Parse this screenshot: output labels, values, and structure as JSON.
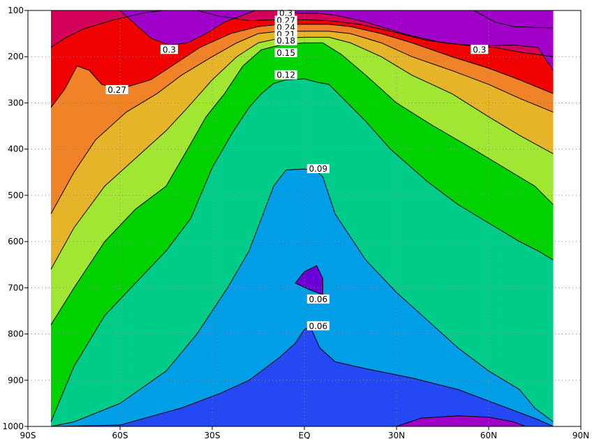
{
  "chart_data": {
    "type": "filled-contour",
    "title": "",
    "xlabel": "",
    "ylabel": "",
    "x_ticks": [
      "90S",
      "60S",
      "30S",
      "EQ",
      "30N",
      "60N",
      "90N"
    ],
    "x_tick_values": [
      -90,
      -60,
      -30,
      0,
      30,
      60,
      90
    ],
    "y_ticks": [
      "100",
      "200",
      "300",
      "400",
      "500",
      "600",
      "700",
      "800",
      "900",
      "1000"
    ],
    "y_tick_values": [
      100,
      200,
      300,
      400,
      500,
      600,
      700,
      800,
      900,
      1000
    ],
    "xlim": [
      -90,
      90
    ],
    "ylim": [
      1000,
      100
    ],
    "y_inverted": true,
    "data_lat_range": [
      -82.5,
      81
    ],
    "grid": "dotted",
    "contour_levels": [
      0.03,
      0.06,
      0.09,
      0.12,
      0.15,
      0.18,
      0.21,
      0.24,
      0.27,
      0.3
    ],
    "band_colors": [
      "#6a00d5",
      "#2448f4",
      "#009ee6",
      "#00cc8a",
      "#00d200",
      "#a0e632",
      "#e6b428",
      "#f08228",
      "#f00000",
      "#d2005a",
      "#a000c8"
    ],
    "contour_labels": [
      {
        "text": "0.3",
        "x": -44,
        "y": 185
      },
      {
        "text": "0.27",
        "x": -61,
        "y": 272
      },
      {
        "text": "0.3",
        "x": 57,
        "y": 185
      },
      {
        "text": "0.3",
        "x": -6,
        "y": 106
      },
      {
        "text": "0.27",
        "x": -6,
        "y": 122
      },
      {
        "text": "0.24",
        "x": -6,
        "y": 137
      },
      {
        "text": "0.21",
        "x": -6,
        "y": 152
      },
      {
        "text": "0.18",
        "x": -6,
        "y": 166
      },
      {
        "text": "0.15",
        "x": -6,
        "y": 192
      },
      {
        "text": "0.12",
        "x": -6,
        "y": 240
      },
      {
        "text": "0.09",
        "x": 4.5,
        "y": 443
      },
      {
        "text": "0.06",
        "x": 4.5,
        "y": 725
      },
      {
        "text": "0.06",
        "x": 4.5,
        "y": 783
      }
    ],
    "contours": [
      {
        "level": 0.03,
        "points": [
          [
            30,
            1000
          ],
          [
            38,
            982
          ],
          [
            50,
            977
          ],
          [
            60,
            980
          ],
          [
            68,
            990
          ],
          [
            72,
            1000
          ]
        ]
      },
      {
        "level": 0.06,
        "points": [
          [
            -82.5,
            1000
          ],
          [
            -60,
            997
          ],
          [
            -40,
            960
          ],
          [
            -28,
            930
          ],
          [
            -18,
            900
          ],
          [
            -8,
            850
          ],
          [
            -3,
            820
          ],
          [
            0,
            790
          ],
          [
            2,
            785
          ],
          [
            5,
            830
          ],
          [
            10,
            860
          ],
          [
            20,
            875
          ],
          [
            35,
            895
          ],
          [
            50,
            920
          ],
          [
            60,
            945
          ],
          [
            70,
            970
          ],
          [
            76,
            985
          ],
          [
            81,
            1000
          ]
        ]
      },
      {
        "level": 0.06,
        "points": [
          [
            -3,
            690
          ],
          [
            0,
            665
          ],
          [
            4,
            652
          ],
          [
            6,
            680
          ],
          [
            6,
            715
          ],
          [
            2,
            705
          ],
          [
            -3,
            690
          ]
        ]
      },
      {
        "level": 0.09,
        "points": [
          [
            -82.5,
            1000
          ],
          [
            -75,
            990
          ],
          [
            -60,
            950
          ],
          [
            -45,
            880
          ],
          [
            -35,
            800
          ],
          [
            -25,
            700
          ],
          [
            -18,
            620
          ],
          [
            -14,
            550
          ],
          [
            -10,
            480
          ],
          [
            -6,
            445
          ],
          [
            0,
            443
          ],
          [
            4,
            448
          ],
          [
            6,
            460
          ],
          [
            10,
            540
          ],
          [
            15,
            590
          ],
          [
            20,
            640
          ],
          [
            30,
            710
          ],
          [
            40,
            770
          ],
          [
            50,
            830
          ],
          [
            60,
            880
          ],
          [
            70,
            920
          ],
          [
            75,
            960
          ],
          [
            81,
            990
          ]
        ]
      },
      {
        "level": 0.12,
        "points": [
          [
            -82.5,
            990
          ],
          [
            -75,
            870
          ],
          [
            -65,
            760
          ],
          [
            -55,
            690
          ],
          [
            -45,
            620
          ],
          [
            -37,
            550
          ],
          [
            -30,
            440
          ],
          [
            -23,
            360
          ],
          [
            -18,
            310
          ],
          [
            -14,
            280
          ],
          [
            -10,
            258
          ],
          [
            -6,
            250
          ],
          [
            0,
            248
          ],
          [
            4,
            255
          ],
          [
            8,
            260
          ],
          [
            14,
            300
          ],
          [
            20,
            340
          ],
          [
            28,
            400
          ],
          [
            40,
            470
          ],
          [
            50,
            520
          ],
          [
            60,
            560
          ],
          [
            70,
            600
          ],
          [
            76,
            620
          ],
          [
            81,
            640
          ]
        ]
      },
      {
        "level": 0.15,
        "points": [
          [
            -82.5,
            780
          ],
          [
            -75,
            700
          ],
          [
            -65,
            600
          ],
          [
            -55,
            530
          ],
          [
            -45,
            480
          ],
          [
            -38,
            400
          ],
          [
            -32,
            330
          ],
          [
            -26,
            280
          ],
          [
            -20,
            220
          ],
          [
            -14,
            185
          ],
          [
            -8,
            175
          ],
          [
            0,
            170
          ],
          [
            6,
            170
          ],
          [
            12,
            195
          ],
          [
            20,
            240
          ],
          [
            30,
            300
          ],
          [
            42,
            350
          ],
          [
            55,
            400
          ],
          [
            65,
            440
          ],
          [
            75,
            480
          ],
          [
            81,
            520
          ]
        ]
      },
      {
        "level": 0.18,
        "points": [
          [
            -82.5,
            660
          ],
          [
            -75,
            570
          ],
          [
            -65,
            480
          ],
          [
            -55,
            420
          ],
          [
            -45,
            360
          ],
          [
            -38,
            310
          ],
          [
            -30,
            250
          ],
          [
            -22,
            200
          ],
          [
            -15,
            170
          ],
          [
            -8,
            160
          ],
          [
            0,
            158
          ],
          [
            8,
            158
          ],
          [
            15,
            170
          ],
          [
            25,
            200
          ],
          [
            35,
            240
          ],
          [
            48,
            280
          ],
          [
            60,
            330
          ],
          [
            70,
            370
          ],
          [
            81,
            410
          ]
        ]
      },
      {
        "level": 0.21,
        "points": [
          [
            -82.5,
            540
          ],
          [
            -75,
            450
          ],
          [
            -68,
            380
          ],
          [
            -58,
            320
          ],
          [
            -48,
            280
          ],
          [
            -40,
            240
          ],
          [
            -30,
            200
          ],
          [
            -22,
            170
          ],
          [
            -15,
            150
          ],
          [
            -8,
            145
          ],
          [
            0,
            145
          ],
          [
            8,
            145
          ],
          [
            15,
            150
          ],
          [
            25,
            170
          ],
          [
            35,
            200
          ],
          [
            48,
            230
          ],
          [
            60,
            260
          ],
          [
            70,
            290
          ],
          [
            81,
            320
          ]
        ]
      },
      {
        "level": 0.24,
        "points": [
          [
            -82.5,
            310
          ],
          [
            -78,
            270
          ],
          [
            -74,
            220
          ],
          [
            -70,
            230
          ],
          [
            -66,
            260
          ],
          [
            -60,
            270
          ],
          [
            -50,
            250
          ],
          [
            -42,
            215
          ],
          [
            -34,
            180
          ],
          [
            -24,
            150
          ],
          [
            -15,
            135
          ],
          [
            -8,
            130
          ],
          [
            0,
            130
          ],
          [
            8,
            130
          ],
          [
            15,
            135
          ],
          [
            25,
            150
          ],
          [
            35,
            170
          ],
          [
            48,
            200
          ],
          [
            60,
            225
          ],
          [
            70,
            250
          ],
          [
            81,
            280
          ]
        ]
      },
      {
        "level": 0.27,
        "points": [
          [
            -82.5,
            180
          ],
          [
            -78,
            160
          ],
          [
            -72,
            140
          ],
          [
            -62,
            120
          ],
          [
            -52,
            105
          ],
          [
            -46,
            100
          ]
        ]
      },
      {
        "level": 0.27,
        "points": [
          [
            -35,
            100
          ],
          [
            -28,
            112
          ],
          [
            -18,
            122
          ],
          [
            -8,
            120
          ],
          [
            0,
            120
          ],
          [
            8,
            122
          ],
          [
            18,
            130
          ],
          [
            28,
            145
          ],
          [
            40,
            165
          ],
          [
            52,
            175
          ],
          [
            62,
            180
          ],
          [
            70,
            190
          ],
          [
            81,
            200
          ]
        ]
      },
      {
        "level": 0.3,
        "points": [
          [
            -60,
            100
          ],
          [
            -55,
            130
          ],
          [
            -50,
            160
          ],
          [
            -44,
            175
          ],
          [
            -38,
            170
          ],
          [
            -32,
            150
          ],
          [
            -26,
            125
          ],
          [
            -20,
            110
          ],
          [
            -16,
            100
          ]
        ]
      },
      {
        "level": 0.3,
        "points": [
          [
            -6,
            100
          ],
          [
            -2,
            106
          ],
          [
            4,
            106
          ],
          [
            10,
            110
          ],
          [
            20,
            125
          ],
          [
            32,
            150
          ],
          [
            45,
            170
          ],
          [
            57,
            177
          ],
          [
            68,
            175
          ],
          [
            76,
            180
          ],
          [
            81,
            230
          ]
        ]
      },
      {
        "level": 0.3,
        "points": [
          [
            55,
            100
          ],
          [
            58,
            110
          ],
          [
            62,
            125
          ],
          [
            68,
            135
          ],
          [
            81,
            138
          ]
        ]
      }
    ]
  }
}
